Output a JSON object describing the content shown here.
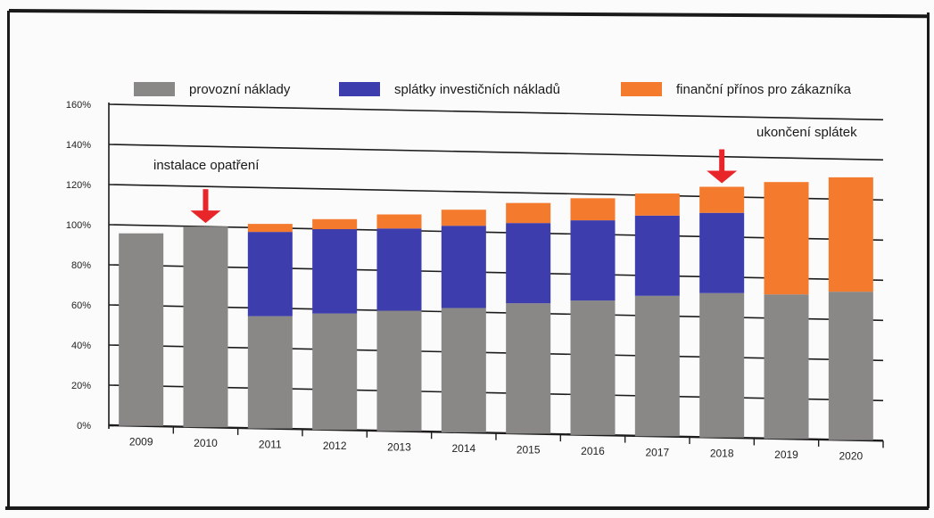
{
  "chart_data": {
    "type": "bar",
    "stacked": true,
    "title": "",
    "xlabel": "",
    "ylabel": "",
    "categories": [
      "2009",
      "2010",
      "2011",
      "2012",
      "2013",
      "2014",
      "2015",
      "2016",
      "2017",
      "2018",
      "2019",
      "2020"
    ],
    "series": [
      {
        "name": "provozní náklady",
        "color": "#8a8886",
        "values": [
          96,
          100,
          56,
          58,
          60,
          62,
          65,
          67,
          70,
          72,
          72,
          74
        ]
      },
      {
        "name": "splátky investičních nákladů",
        "color": "#3d3dad",
        "values": [
          0,
          0,
          42,
          42,
          41,
          41,
          40,
          40,
          40,
          40,
          0,
          0
        ]
      },
      {
        "name": "finanční přínos pro zákazníka",
        "color": "#f47a2e",
        "values": [
          0,
          0,
          4,
          5,
          7,
          8,
          10,
          11,
          11,
          13,
          56,
          57
        ]
      }
    ],
    "ylim": [
      0,
      160
    ],
    "yticks": [
      "0%",
      "20%",
      "40%",
      "60%",
      "80%",
      "100%",
      "120%",
      "140%",
      "160%"
    ],
    "grid": true,
    "legend_position": "top",
    "annotations": [
      {
        "text": "instalace opatření",
        "category": "2010",
        "arrow_color": "#e8262a"
      },
      {
        "text": "ukončení splátek",
        "category": "2018",
        "arrow_color": "#e8262a"
      }
    ]
  }
}
